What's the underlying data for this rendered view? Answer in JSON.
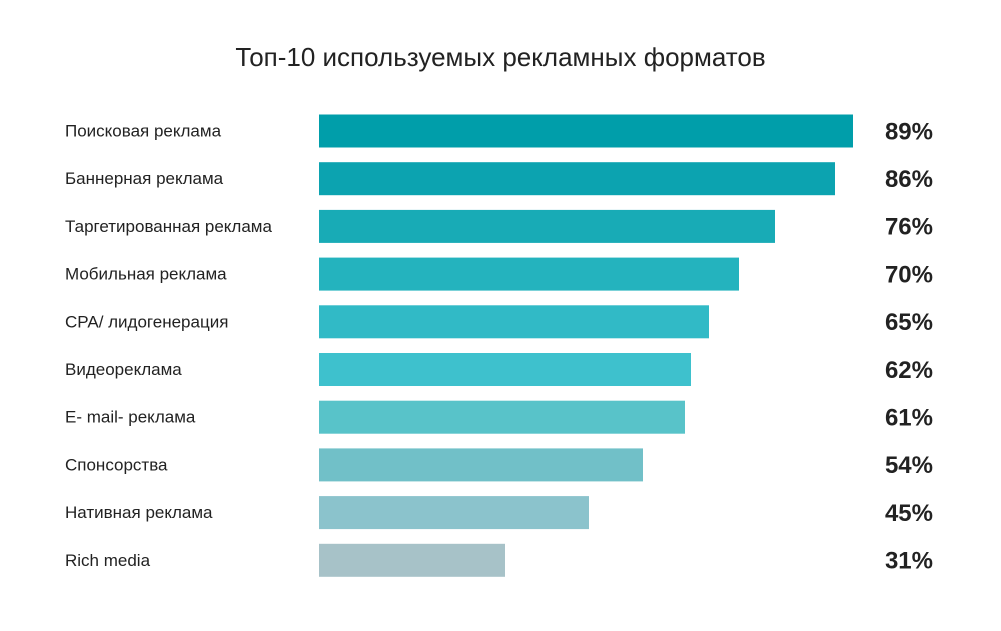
{
  "chart_data": {
    "type": "bar",
    "orientation": "horizontal",
    "title": "Топ-10 используемых рекламных форматов",
    "xlabel": "",
    "ylabel": "",
    "xlim": [
      0,
      89
    ],
    "categories": [
      "Поисковая реклама",
      "Баннерная реклама",
      "Таргетированная реклама",
      "Мобильная реклама",
      "CPA/ лидогенерация",
      "Видеореклама",
      "E- mail- реклама",
      "Спонсорства",
      "Нативная реклама",
      "Rich media"
    ],
    "values": [
      89,
      86,
      76,
      70,
      65,
      62,
      61,
      54,
      45,
      31
    ],
    "labels": [
      "89%",
      "86%",
      "76%",
      "70%",
      "65%",
      "62%",
      "61%",
      "54%",
      "45%",
      "31%"
    ],
    "colors": [
      "#009EAA",
      "#0CA3B0",
      "#18ABB6",
      "#24B3BE",
      "#31BAC6",
      "#3EC1CD",
      "#58C3C9",
      "#71C0C8",
      "#8BC3CC",
      "#A7C2C8"
    ],
    "grid": false,
    "legend": "none"
  }
}
